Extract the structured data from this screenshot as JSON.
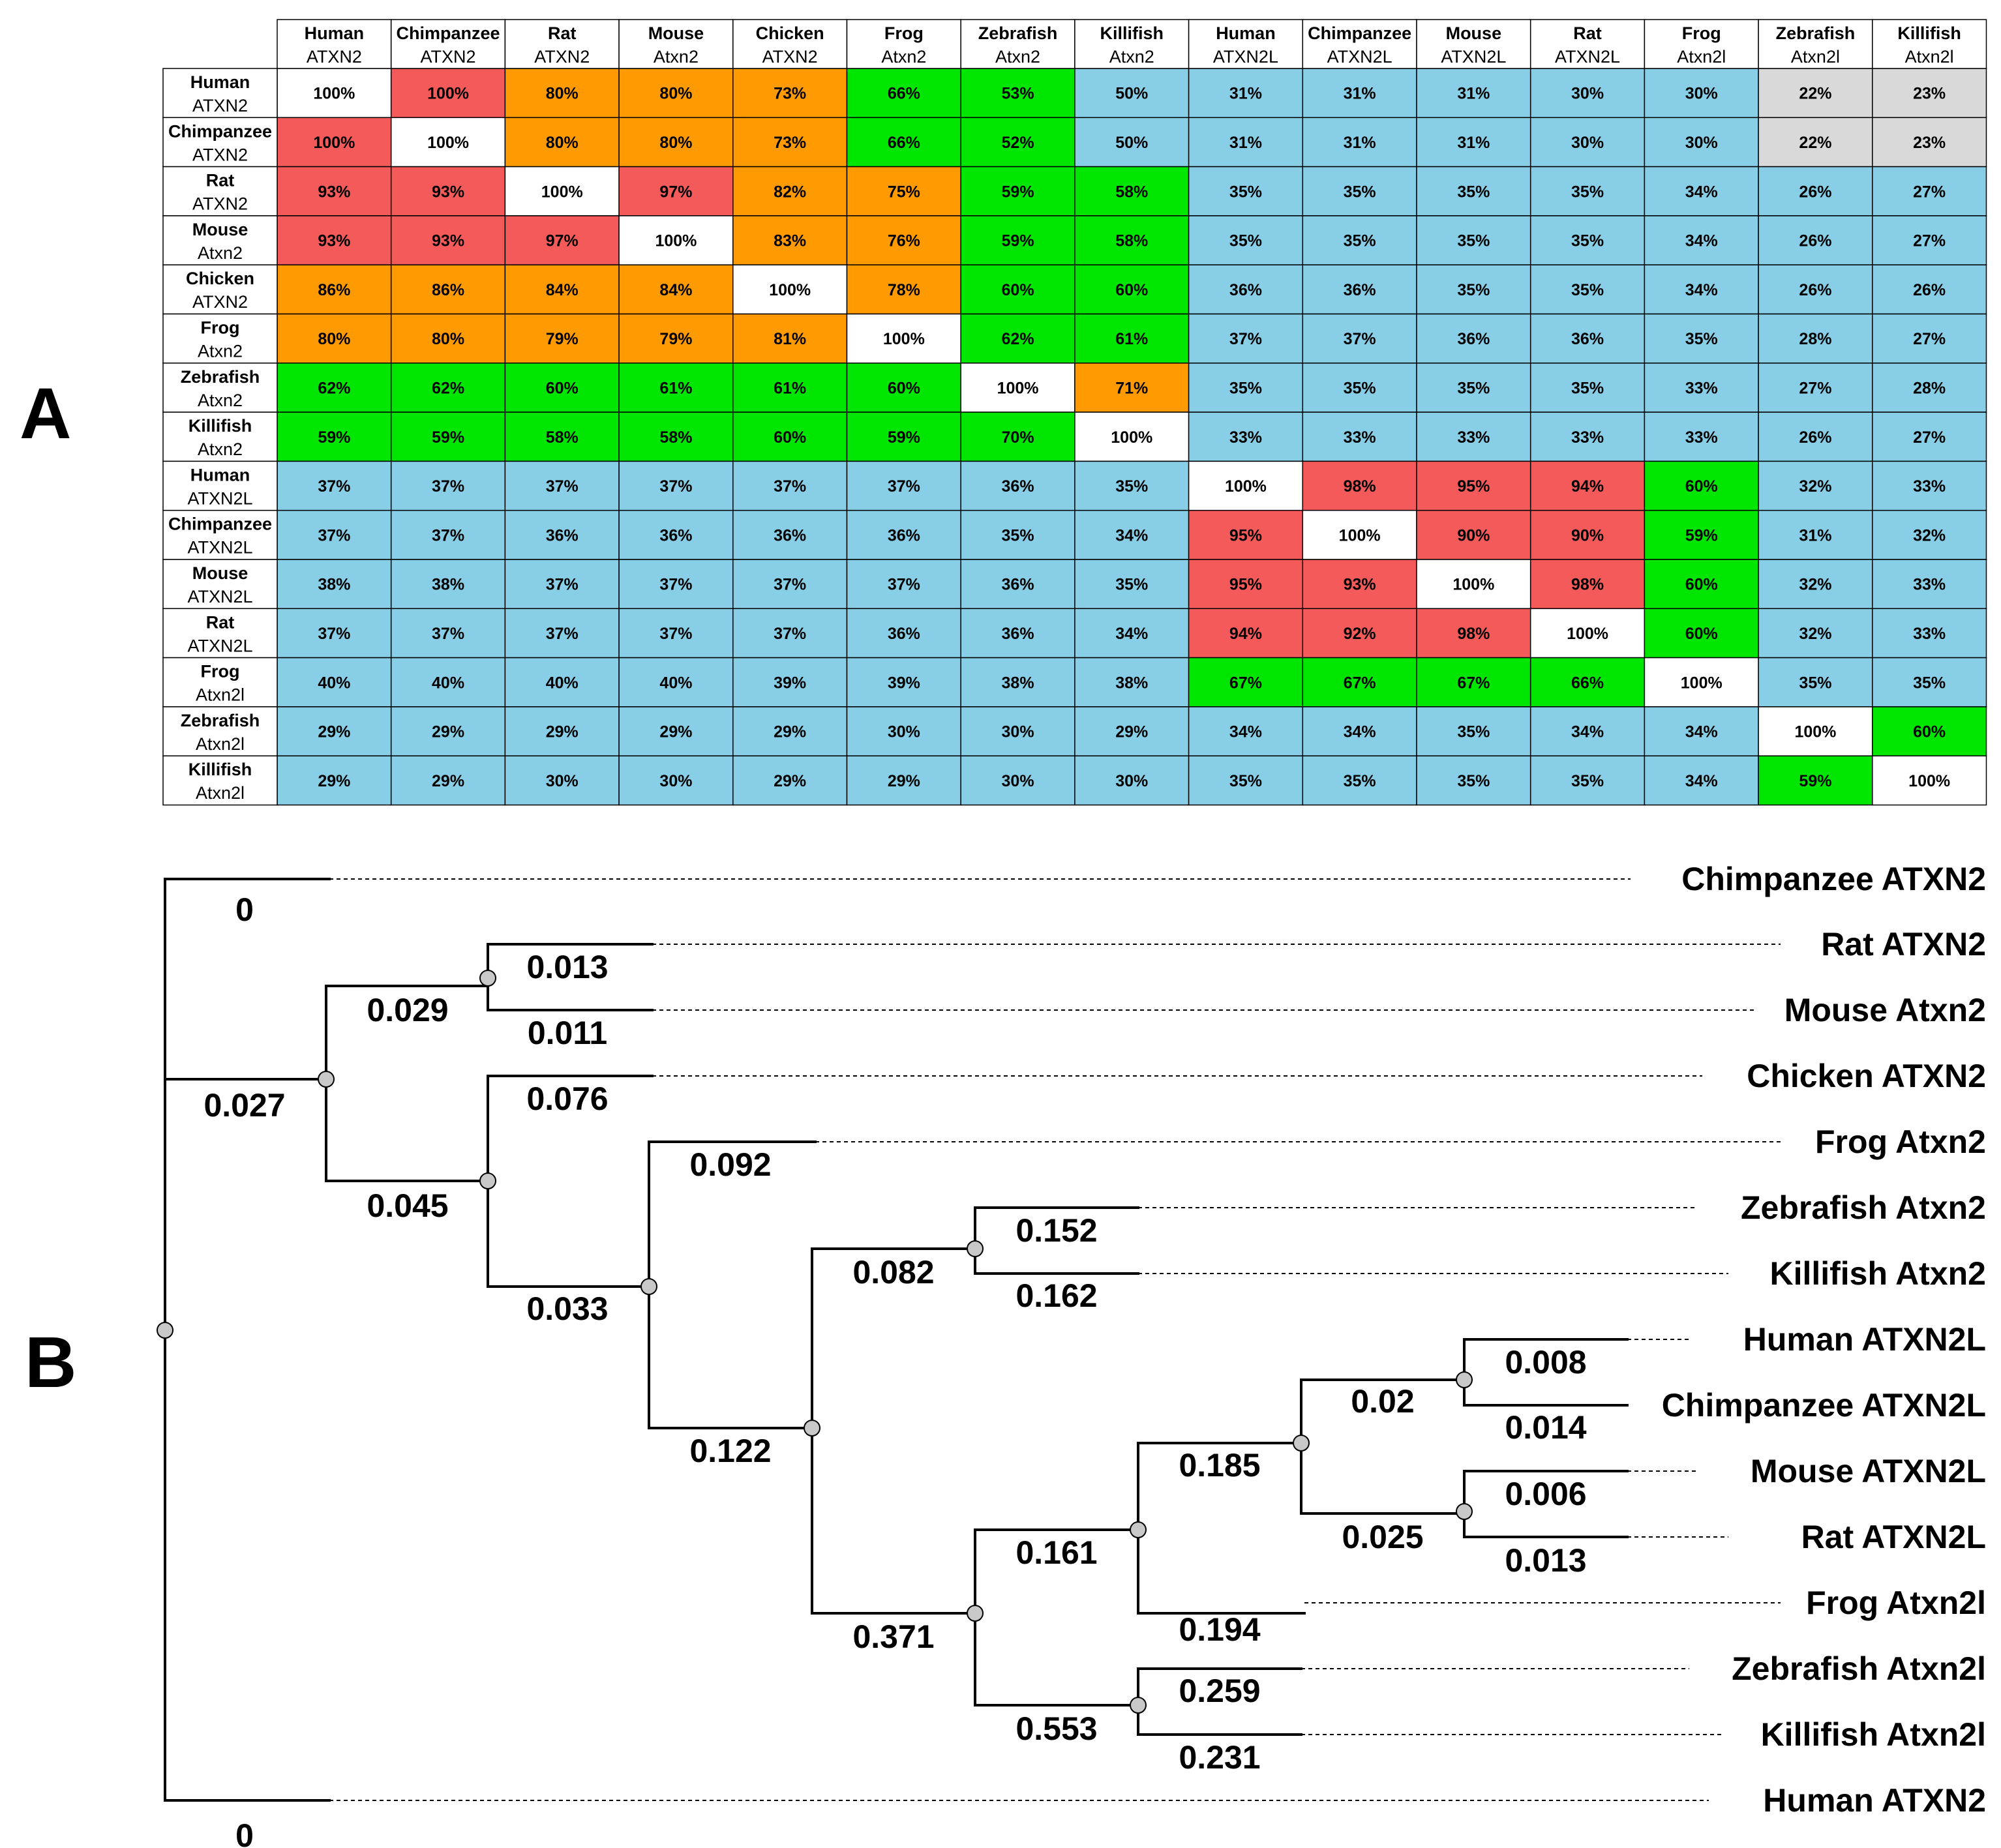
{
  "panels": {
    "a_label": "A",
    "b_label": "B"
  },
  "colors": {
    "red": "#F55A5A",
    "orange": "#FF9A00",
    "green": "#00E600",
    "blue": "#87CEE6",
    "gray": "#D9D9D9",
    "white": "#FFFFFF",
    "grid": "#000000",
    "node_fill": "#C8C8C8"
  },
  "chart_data": [
    {
      "type": "heatmap",
      "title": "",
      "units": "% identity",
      "column_labels": [
        {
          "species": "Human",
          "gene": "ATXN2"
        },
        {
          "species": "Chimpanzee",
          "gene": "ATXN2"
        },
        {
          "species": "Rat",
          "gene": "ATXN2"
        },
        {
          "species": "Mouse",
          "gene": "Atxn2"
        },
        {
          "species": "Chicken",
          "gene": "ATXN2"
        },
        {
          "species": "Frog",
          "gene": "Atxn2"
        },
        {
          "species": "Zebrafish",
          "gene": "Atxn2"
        },
        {
          "species": "Killifish",
          "gene": "Atxn2"
        },
        {
          "species": "Human",
          "gene": "ATXN2L"
        },
        {
          "species": "Chimpanzee",
          "gene": "ATXN2L"
        },
        {
          "species": "Mouse",
          "gene": "ATXN2L"
        },
        {
          "species": "Rat",
          "gene": "ATXN2L"
        },
        {
          "species": "Frog",
          "gene": "Atxn2l"
        },
        {
          "species": "Zebrafish",
          "gene": "Atxn2l"
        },
        {
          "species": "Killifish",
          "gene": "Atxn2l"
        }
      ],
      "row_labels": [
        {
          "species": "Human",
          "gene": "ATXN2"
        },
        {
          "species": "Chimpanzee",
          "gene": "ATXN2"
        },
        {
          "species": "Rat",
          "gene": "ATXN2"
        },
        {
          "species": "Mouse",
          "gene": "Atxn2"
        },
        {
          "species": "Chicken",
          "gene": "ATXN2"
        },
        {
          "species": "Frog",
          "gene": "Atxn2"
        },
        {
          "species": "Zebrafish",
          "gene": "Atxn2"
        },
        {
          "species": "Killifish",
          "gene": "Atxn2"
        },
        {
          "species": "Human",
          "gene": "ATXN2L"
        },
        {
          "species": "Chimpanzee",
          "gene": "ATXN2L"
        },
        {
          "species": "Mouse",
          "gene": "ATXN2L"
        },
        {
          "species": "Rat",
          "gene": "ATXN2L"
        },
        {
          "species": "Frog",
          "gene": "Atxn2l"
        },
        {
          "species": "Zebrafish",
          "gene": "Atxn2l"
        },
        {
          "species": "Killifish",
          "gene": "Atxn2l"
        }
      ],
      "values": [
        [
          "100%",
          "100%",
          "80%",
          "80%",
          "73%",
          "66%",
          "53%",
          "50%",
          "31%",
          "31%",
          "31%",
          "30%",
          "30%",
          "22%",
          "23%"
        ],
        [
          "100%",
          "100%",
          "80%",
          "80%",
          "73%",
          "66%",
          "52%",
          "50%",
          "31%",
          "31%",
          "31%",
          "30%",
          "30%",
          "22%",
          "23%"
        ],
        [
          "93%",
          "93%",
          "100%",
          "97%",
          "82%",
          "75%",
          "59%",
          "58%",
          "35%",
          "35%",
          "35%",
          "35%",
          "34%",
          "26%",
          "27%"
        ],
        [
          "93%",
          "93%",
          "97%",
          "100%",
          "83%",
          "76%",
          "59%",
          "58%",
          "35%",
          "35%",
          "35%",
          "35%",
          "34%",
          "26%",
          "27%"
        ],
        [
          "86%",
          "86%",
          "84%",
          "84%",
          "100%",
          "78%",
          "60%",
          "60%",
          "36%",
          "36%",
          "35%",
          "35%",
          "34%",
          "26%",
          "26%"
        ],
        [
          "80%",
          "80%",
          "79%",
          "79%",
          "81%",
          "100%",
          "62%",
          "61%",
          "37%",
          "37%",
          "36%",
          "36%",
          "35%",
          "28%",
          "27%"
        ],
        [
          "62%",
          "62%",
          "60%",
          "61%",
          "61%",
          "60%",
          "100%",
          "71%",
          "35%",
          "35%",
          "35%",
          "35%",
          "33%",
          "27%",
          "28%"
        ],
        [
          "59%",
          "59%",
          "58%",
          "58%",
          "60%",
          "59%",
          "70%",
          "100%",
          "33%",
          "33%",
          "33%",
          "33%",
          "33%",
          "26%",
          "27%"
        ],
        [
          "37%",
          "37%",
          "37%",
          "37%",
          "37%",
          "37%",
          "36%",
          "35%",
          "100%",
          "98%",
          "95%",
          "94%",
          "60%",
          "32%",
          "33%"
        ],
        [
          "37%",
          "37%",
          "36%",
          "36%",
          "36%",
          "36%",
          "35%",
          "34%",
          "95%",
          "100%",
          "90%",
          "90%",
          "59%",
          "31%",
          "32%"
        ],
        [
          "38%",
          "38%",
          "37%",
          "37%",
          "37%",
          "37%",
          "36%",
          "35%",
          "95%",
          "93%",
          "100%",
          "98%",
          "60%",
          "32%",
          "33%"
        ],
        [
          "37%",
          "37%",
          "37%",
          "37%",
          "37%",
          "36%",
          "36%",
          "34%",
          "94%",
          "92%",
          "98%",
          "100%",
          "60%",
          "32%",
          "33%"
        ],
        [
          "40%",
          "40%",
          "40%",
          "40%",
          "39%",
          "39%",
          "38%",
          "38%",
          "67%",
          "67%",
          "67%",
          "66%",
          "100%",
          "35%",
          "35%"
        ],
        [
          "29%",
          "29%",
          "29%",
          "29%",
          "29%",
          "30%",
          "30%",
          "29%",
          "34%",
          "34%",
          "35%",
          "34%",
          "34%",
          "100%",
          "60%"
        ],
        [
          "29%",
          "29%",
          "30%",
          "30%",
          "29%",
          "29%",
          "30%",
          "30%",
          "35%",
          "35%",
          "35%",
          "35%",
          "34%",
          "59%",
          "100%"
        ]
      ],
      "cell_colors": [
        [
          "white",
          "red",
          "orange",
          "orange",
          "orange",
          "green",
          "green",
          "blue",
          "blue",
          "blue",
          "blue",
          "blue",
          "blue",
          "gray",
          "gray"
        ],
        [
          "red",
          "white",
          "orange",
          "orange",
          "orange",
          "green",
          "green",
          "blue",
          "blue",
          "blue",
          "blue",
          "blue",
          "blue",
          "gray",
          "gray"
        ],
        [
          "red",
          "red",
          "white",
          "red",
          "orange",
          "orange",
          "green",
          "green",
          "blue",
          "blue",
          "blue",
          "blue",
          "blue",
          "blue",
          "blue"
        ],
        [
          "red",
          "red",
          "red",
          "white",
          "orange",
          "orange",
          "green",
          "green",
          "blue",
          "blue",
          "blue",
          "blue",
          "blue",
          "blue",
          "blue"
        ],
        [
          "orange",
          "orange",
          "orange",
          "orange",
          "white",
          "orange",
          "green",
          "green",
          "blue",
          "blue",
          "blue",
          "blue",
          "blue",
          "blue",
          "blue"
        ],
        [
          "orange",
          "orange",
          "orange",
          "orange",
          "orange",
          "white",
          "green",
          "green",
          "blue",
          "blue",
          "blue",
          "blue",
          "blue",
          "blue",
          "blue"
        ],
        [
          "green",
          "green",
          "green",
          "green",
          "green",
          "green",
          "white",
          "orange",
          "blue",
          "blue",
          "blue",
          "blue",
          "blue",
          "blue",
          "blue"
        ],
        [
          "green",
          "green",
          "green",
          "green",
          "green",
          "green",
          "green",
          "white",
          "blue",
          "blue",
          "blue",
          "blue",
          "blue",
          "blue",
          "blue"
        ],
        [
          "blue",
          "blue",
          "blue",
          "blue",
          "blue",
          "blue",
          "blue",
          "blue",
          "white",
          "red",
          "red",
          "red",
          "green",
          "blue",
          "blue"
        ],
        [
          "blue",
          "blue",
          "blue",
          "blue",
          "blue",
          "blue",
          "blue",
          "blue",
          "red",
          "white",
          "red",
          "red",
          "green",
          "blue",
          "blue"
        ],
        [
          "blue",
          "blue",
          "blue",
          "blue",
          "blue",
          "blue",
          "blue",
          "blue",
          "red",
          "red",
          "white",
          "red",
          "green",
          "blue",
          "blue"
        ],
        [
          "blue",
          "blue",
          "blue",
          "blue",
          "blue",
          "blue",
          "blue",
          "blue",
          "red",
          "red",
          "red",
          "white",
          "green",
          "blue",
          "blue"
        ],
        [
          "blue",
          "blue",
          "blue",
          "blue",
          "blue",
          "blue",
          "blue",
          "blue",
          "green",
          "green",
          "green",
          "green",
          "white",
          "blue",
          "blue"
        ],
        [
          "blue",
          "blue",
          "blue",
          "blue",
          "blue",
          "blue",
          "blue",
          "blue",
          "blue",
          "blue",
          "blue",
          "blue",
          "blue",
          "white",
          "green"
        ],
        [
          "blue",
          "blue",
          "blue",
          "blue",
          "blue",
          "blue",
          "blue",
          "blue",
          "blue",
          "blue",
          "blue",
          "blue",
          "blue",
          "green",
          "white"
        ]
      ]
    },
    {
      "type": "tree",
      "title": "",
      "leaves": [
        "Chimpanzee ATXN2",
        "Rat ATXN2",
        "Mouse Atxn2",
        "Chicken ATXN2",
        "Frog Atxn2",
        "Zebrafish Atxn2",
        "Killifish Atxn2",
        "Human ATXN2L",
        "Chimpanzee ATXN2L",
        "Mouse ATXN2L",
        "Rat ATXN2L",
        "Frog Atxn2l",
        "Zebrafish Atxn2l",
        "Killifish Atxn2l",
        "Human ATXN2"
      ],
      "branch_lengths": {
        "chimp_atxn2": "0",
        "human_atxn2": "0",
        "clade_rest": "0.027",
        "rodents": "0.029",
        "rat_atxn2": "0.013",
        "mouse_atxn2": "0.011",
        "chicken_clade": "0.045",
        "chicken_atxn2": "0.076",
        "frog_clade": "0.033",
        "frog_atxn2": "0.092",
        "fish_clade": "0.122",
        "fish_atxn2": "0.082",
        "zebrafish_atxn2": "0.152",
        "killifish_atxn2": "0.162",
        "atxn2l_clade": "0.371",
        "tetrapod_atxn2l": "0.161",
        "fish_atxn2l": "0.553",
        "mammal_atxn2l": "0.185",
        "frog_atxn2l": "0.194",
        "primate_atxn2l": "0.02",
        "rodent_atxn2l": "0.025",
        "human_atxn2l": "0.008",
        "chimp_atxn2l": "0.014",
        "mouse_atxn2l": "0.006",
        "rat_atxn2l": "0.013",
        "zebrafish_atxn2l": "0.259",
        "killifish_atxn2l": "0.231"
      }
    }
  ]
}
